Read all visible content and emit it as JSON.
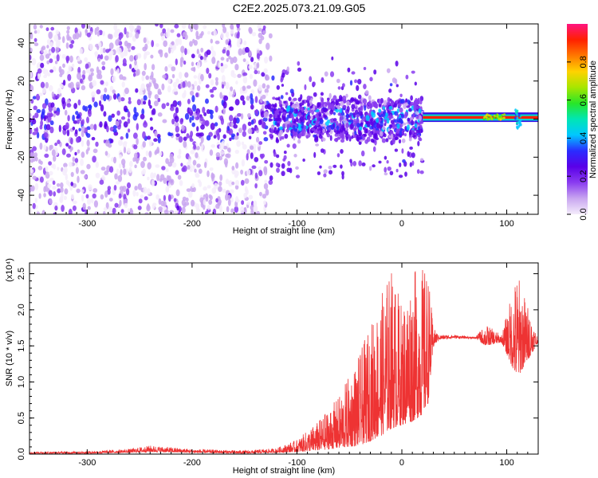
{
  "title": "C2E2.2025.073.21.09.G05",
  "chart_data": [
    {
      "type": "heatmap",
      "xlabel": "Height of straight line (km)",
      "ylabel": "Frequency (Hz)",
      "xlim": [
        -355,
        130
      ],
      "ylim": [
        -50,
        50
      ],
      "xticks": [
        -300,
        -200,
        -100,
        0,
        100
      ],
      "yticks": [
        -40,
        -20,
        0,
        20,
        40
      ],
      "colorbar": {
        "label": "Normalized spectral amplitude",
        "range": [
          0,
          1
        ],
        "ticks": [
          "0.0",
          "0.2",
          "0.4",
          "0.6",
          "0.8"
        ],
        "colors": [
          "#f4ecfb",
          "#c9a6f0",
          "#8a3cf0",
          "#5a00e8",
          "#2a2cff",
          "#00c8ff",
          "#00e6b4",
          "#28e628",
          "#a8e600",
          "#ffd200",
          "#ff7800",
          "#ff2000",
          "#ff1480"
        ]
      },
      "regions": [
        {
          "x_range": [
            -355,
            -125
          ],
          "description_level": 0.12
        },
        {
          "x_range": [
            -125,
            20
          ],
          "description_level": 0.25
        },
        {
          "x_range": [
            20,
            130
          ],
          "description_level": 0.9,
          "freq_band": [
            -1,
            3
          ]
        }
      ]
    },
    {
      "type": "line",
      "xlabel": "Height of straight line (km)",
      "ylabel": "SNR (10 * v/v)",
      "yscale_label": "(x10⁴)",
      "xlim": [
        -355,
        130
      ],
      "ylim": [
        0,
        2.65
      ],
      "xticks": [
        -300,
        -200,
        -100,
        0,
        100
      ],
      "yticks": [
        0.0,
        0.5,
        1.0,
        1.5,
        2.0,
        2.5
      ],
      "series": [
        {
          "color": "#ee3333",
          "envelope_x": [
            -355,
            -300,
            -260,
            -240,
            -200,
            -150,
            -120,
            -100,
            -80,
            -60,
            -40,
            -30,
            -20,
            -10,
            0,
            10,
            20,
            25,
            30,
            35,
            50,
            70,
            80,
            95,
            110,
            130
          ],
          "envelope_low": [
            0.01,
            0.01,
            0.02,
            0.03,
            0.02,
            0.01,
            0.02,
            0.03,
            0.05,
            0.08,
            0.12,
            0.18,
            0.25,
            0.35,
            0.4,
            0.45,
            0.55,
            0.7,
            1.45,
            1.58,
            1.6,
            1.6,
            1.5,
            1.55,
            1.05,
            1.55
          ],
          "envelope_high": [
            0.03,
            0.04,
            0.07,
            0.12,
            0.07,
            0.05,
            0.08,
            0.2,
            0.45,
            0.8,
            1.4,
            1.8,
            2.2,
            2.6,
            2.1,
            2.55,
            2.6,
            2.55,
            1.75,
            1.65,
            1.65,
            1.62,
            1.8,
            1.65,
            2.55,
            1.6
          ]
        }
      ]
    }
  ]
}
